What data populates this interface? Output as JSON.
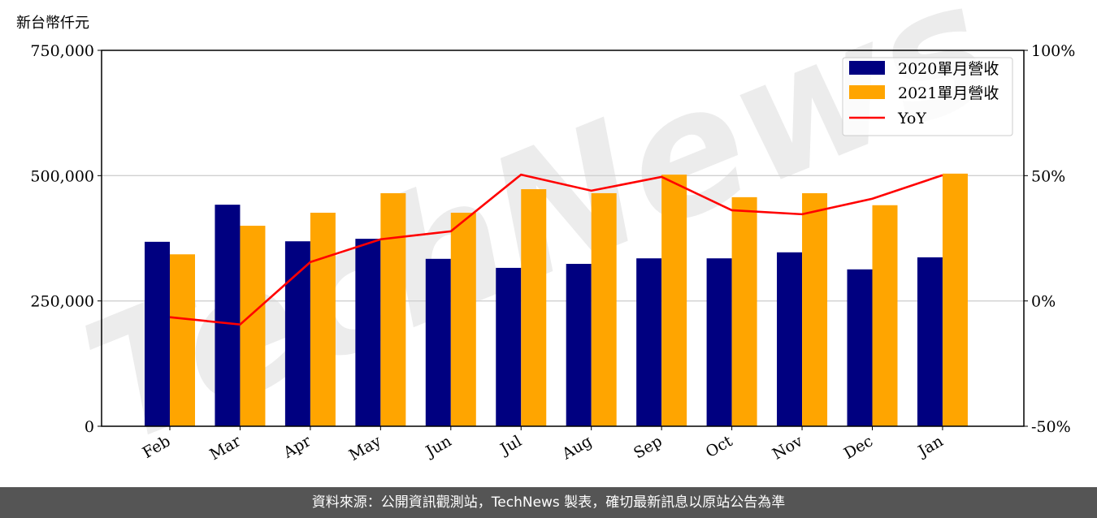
{
  "chart_data": {
    "type": "bar+line",
    "ylabel_left": "新台幣仟元",
    "categories": [
      "Feb",
      "Mar",
      "Apr",
      "May",
      "Jun",
      "Jul",
      "Aug",
      "Sep",
      "Oct",
      "Nov",
      "Dec",
      "Jan"
    ],
    "series": [
      {
        "name": "2020單月營收",
        "type": "bar",
        "color": "#000080",
        "axis": "left",
        "values": [
          368000,
          442000,
          369000,
          374000,
          334000,
          316000,
          324000,
          335000,
          335000,
          347000,
          313000,
          337000
        ]
      },
      {
        "name": "2021單月營收",
        "type": "bar",
        "color": "#FFA500",
        "axis": "left",
        "values": [
          343000,
          400000,
          426000,
          465000,
          426000,
          473000,
          465000,
          502000,
          457000,
          465000,
          441000,
          504000
        ]
      },
      {
        "name": "YoY",
        "type": "line",
        "color": "#FF0000",
        "axis": "right",
        "values": [
          -6.5,
          -9.4,
          15.5,
          24.6,
          27.8,
          50.4,
          44.0,
          49.5,
          36.2,
          34.6,
          40.8,
          50.2
        ]
      }
    ],
    "ylim_left": [
      0,
      750000
    ],
    "yticks_left": [
      "0",
      "250,000",
      "500,000",
      "750,000"
    ],
    "ylim_right": [
      -50,
      100
    ],
    "yticks_right": [
      "-50%",
      "0%",
      "50%",
      "100%"
    ],
    "grid": "horizontal",
    "legend": "top-right"
  },
  "watermark": "TechNews",
  "footer": "資料來源：公開資訊觀測站，TechNews 製表，確切最新訊息以原站公告為準"
}
